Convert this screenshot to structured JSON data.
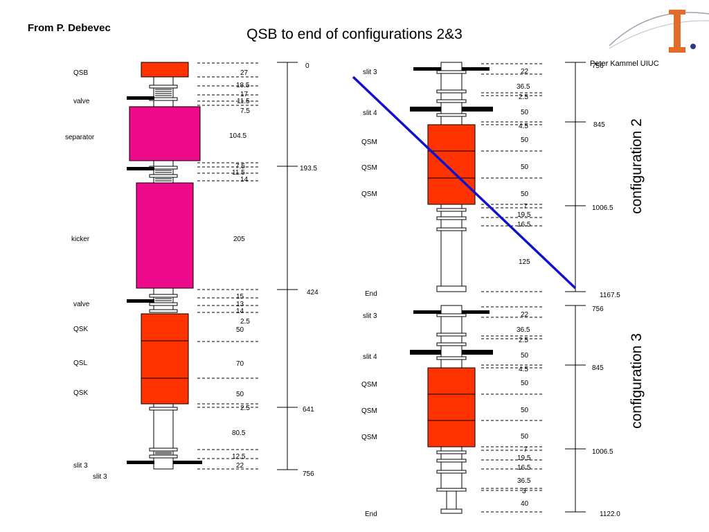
{
  "slide": {
    "title": "QSB to end of configurations 2&3",
    "author": "From P. Debevec",
    "credit": "Peter Kammel  UIUC",
    "logo_letter": "I"
  },
  "configs": {
    "config2_label": "configuration 2",
    "config3_label": "configuration 3"
  },
  "left_column": {
    "elements": [
      {
        "name": "QSB",
        "length": "27"
      },
      {
        "name": "valve",
        "length": "18.5 / 17 / 11.5 / 7.5"
      },
      {
        "name": "separator",
        "length": "104.5"
      },
      {
        "name": "kicker",
        "length": "205"
      },
      {
        "name": "valve",
        "length": "15 / 13 / 14 / 2.5"
      },
      {
        "name": "QSK",
        "length": "50"
      },
      {
        "name": "QSL",
        "length": "70"
      },
      {
        "name": "QSK",
        "length": "50"
      },
      {
        "name": "slit 3",
        "length": "22"
      }
    ],
    "names": [
      "QSB",
      "valve",
      "separator",
      "kicker",
      "valve",
      "QSK",
      "QSL",
      "QSK",
      "slit 3",
      "slit 3"
    ],
    "lengths": [
      "27",
      "18.5",
      "17",
      "11.5",
      "7.5",
      "104.5",
      "7.5",
      "11.5",
      "14",
      "205",
      "15",
      "13",
      "14",
      "2.5",
      "50",
      "70",
      "50",
      "2.5",
      "80.5",
      "12.5",
      "22"
    ],
    "scale_labels": [
      "0",
      "193.5",
      "424",
      "641",
      "756"
    ]
  },
  "config2": {
    "names": [
      "slit 3",
      "slit 4",
      "QSM",
      "QSM",
      "QSM",
      "End"
    ],
    "lengths": [
      "22",
      "36.5",
      "2.5",
      "50",
      "4.5",
      "50",
      "50",
      "50",
      "7",
      "19.5",
      "16.5",
      "125"
    ],
    "scale_labels": [
      "756",
      "845",
      "1006.5",
      "1167.5"
    ]
  },
  "config3": {
    "names": [
      "slit 3",
      "slit 4",
      "QSM",
      "QSM",
      "QSM",
      "End"
    ],
    "lengths": [
      "22",
      "36.5",
      "2.5",
      "50",
      "4.5",
      "50",
      "50",
      "50",
      "7",
      "19.5",
      "16.5",
      "36.5",
      "3",
      "40"
    ],
    "scale_labels": [
      "756",
      "845",
      "1006.5",
      "1122.0"
    ]
  },
  "colors": {
    "quad_red": "#ff3300",
    "magenta": "#ee0a8a",
    "blue_line": "#1111cc",
    "logo_orange": "#e36c2a"
  }
}
